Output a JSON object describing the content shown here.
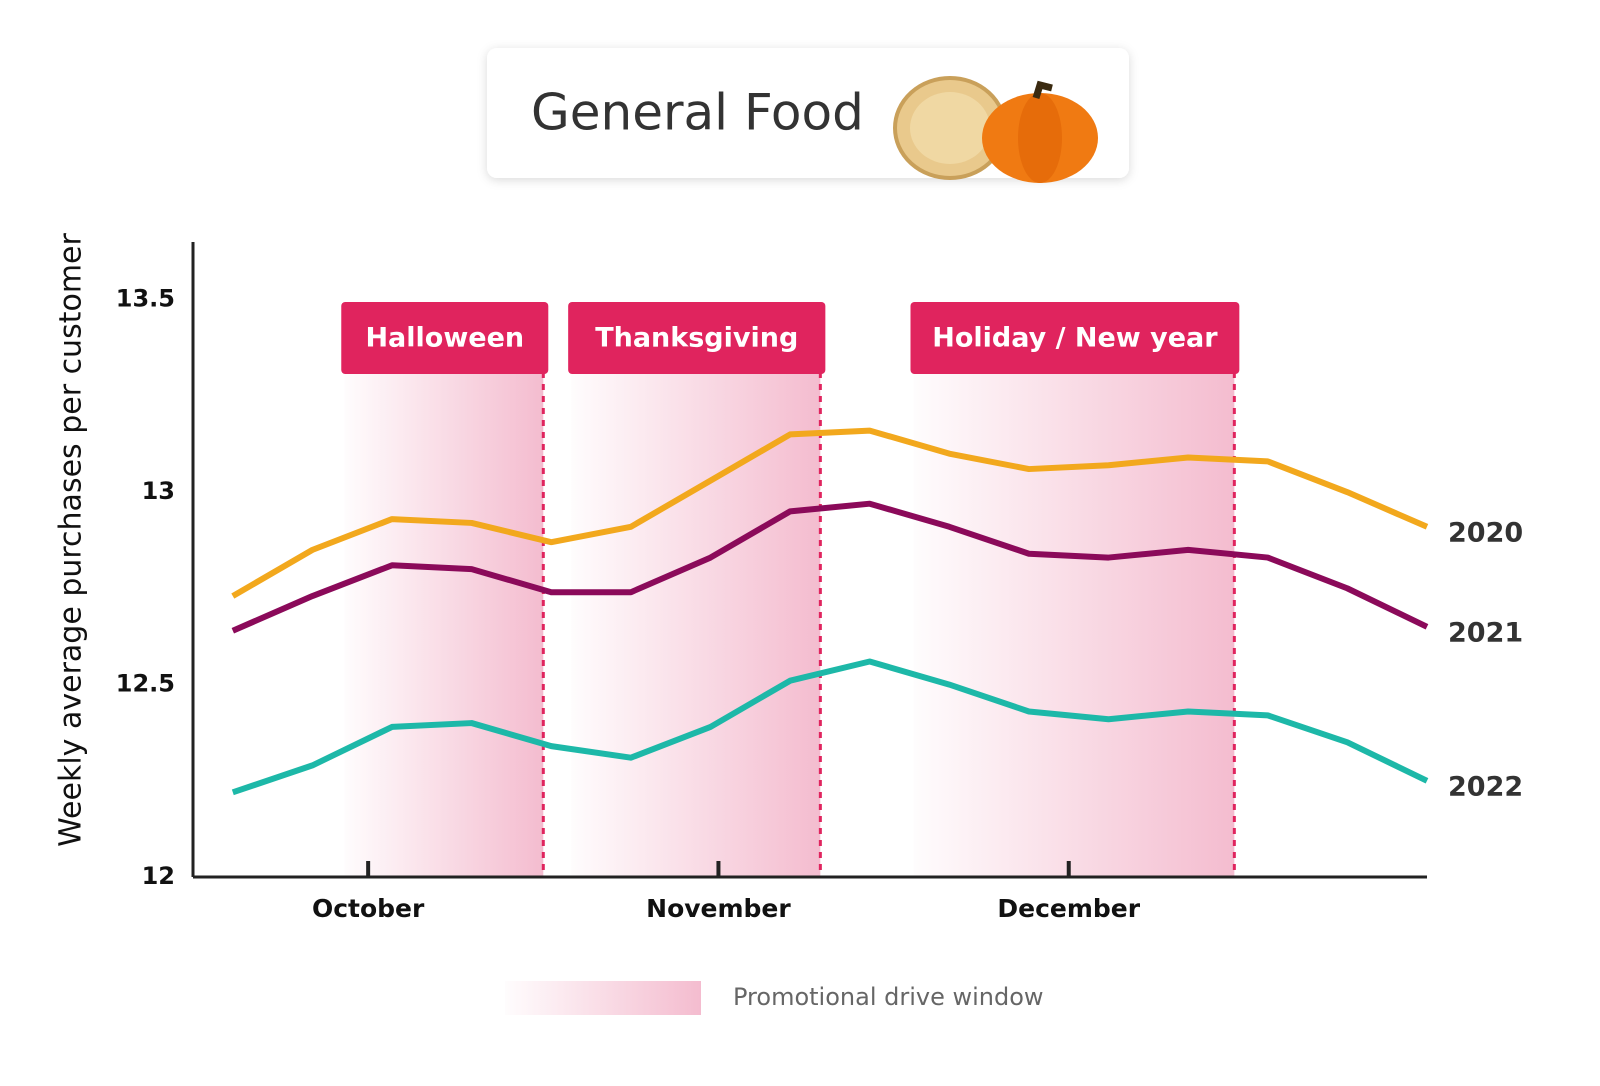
{
  "chart_data": {
    "type": "line",
    "title": "General Food",
    "y_label": "Weekly average purchases per customer",
    "x": [
      0,
      1,
      2,
      3,
      4,
      5,
      6,
      7,
      8,
      9,
      10,
      11,
      12,
      13,
      14,
      15
    ],
    "xlim": [
      -0.5,
      15
    ],
    "xticks": [
      {
        "value": 1.7,
        "label": "October"
      },
      {
        "value": 6.1,
        "label": "November"
      },
      {
        "value": 10.5,
        "label": "December"
      }
    ],
    "ylim": [
      12,
      13.65
    ],
    "yticks": [
      12,
      12.5,
      13,
      13.5
    ],
    "grid": false,
    "series": [
      {
        "name": "2020",
        "color": "#f2a81d",
        "values": [
          12.73,
          12.85,
          12.93,
          12.92,
          12.87,
          12.91,
          13.03,
          13.15,
          13.16,
          13.1,
          13.06,
          13.07,
          13.09,
          13.08,
          13.0,
          12.91
        ]
      },
      {
        "name": "2021",
        "color": "#8b0a5a",
        "values": [
          12.64,
          12.73,
          12.81,
          12.8,
          12.74,
          12.74,
          12.83,
          12.95,
          12.97,
          12.91,
          12.84,
          12.83,
          12.85,
          12.83,
          12.75,
          12.65
        ]
      },
      {
        "name": "2022",
        "color": "#1db8a8",
        "values": [
          12.22,
          12.29,
          12.39,
          12.4,
          12.34,
          12.31,
          12.39,
          12.51,
          12.56,
          12.5,
          12.43,
          12.41,
          12.43,
          12.42,
          12.35,
          12.25
        ]
      }
    ],
    "windows": [
      {
        "label": "Halloween",
        "x": [
          1.4,
          3.9
        ]
      },
      {
        "label": "Thanksgiving",
        "x": [
          4.25,
          7.38
        ]
      },
      {
        "label": "Holiday / New year",
        "x": [
          8.55,
          12.58
        ]
      }
    ],
    "window_color": "#e0245e",
    "legend": "Promotional drive window"
  }
}
